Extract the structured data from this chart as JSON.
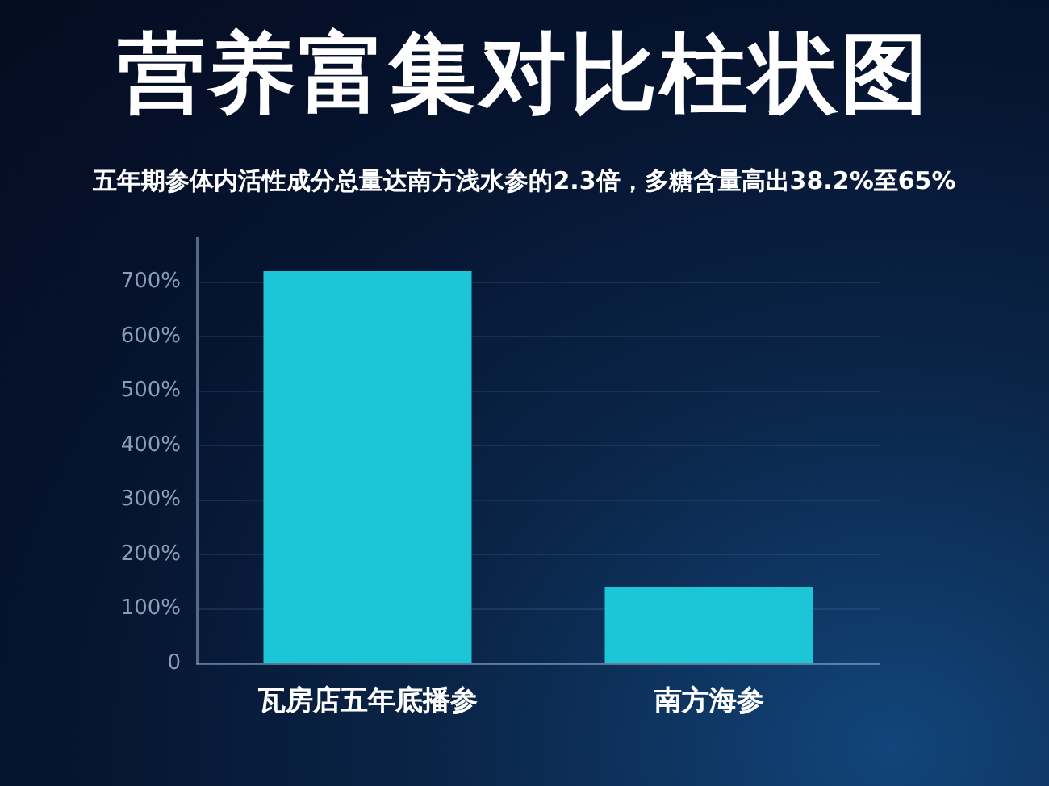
{
  "chart_data": {
    "type": "bar",
    "title": "营养富集对比柱状图",
    "subtitle": "五年期参体内活性成分总量达南方浅水参的2.3倍，多糖含量高出38.2%至65%",
    "categories": [
      "瓦房店五年底播参",
      "南方海参"
    ],
    "values": [
      720,
      140
    ],
    "color": "#1cc6d6",
    "ylim": [
      0,
      780
    ],
    "yticks": [
      0,
      {
        "value": 100,
        "label": "100%"
      },
      {
        "value": 200,
        "label": "200%"
      },
      {
        "value": 300,
        "label": "300%"
      },
      {
        "value": 400,
        "label": "400%"
      },
      {
        "value": 500,
        "label": "500%"
      },
      {
        "value": 600,
        "label": "600%"
      },
      {
        "value": 700,
        "label": "700%"
      }
    ],
    "grid": "y"
  }
}
